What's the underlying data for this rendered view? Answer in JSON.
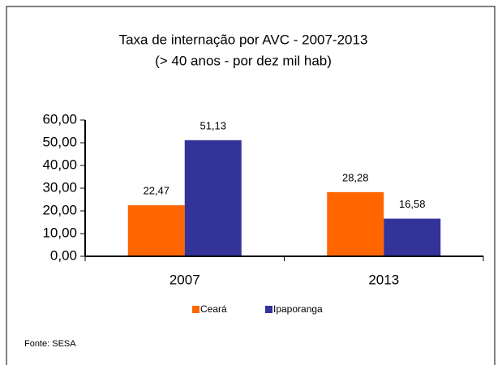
{
  "chart_data": {
    "type": "bar",
    "title": "Taxa de internação por AVC - 2007-2013",
    "subtitle": "(> 40 anos - por dez mil hab)",
    "categories": [
      "2007",
      "2013"
    ],
    "series": [
      {
        "name": "Ceará",
        "color": "#ff6600",
        "values": [
          22.47,
          28.28
        ],
        "value_labels": [
          "22,47",
          "28,28"
        ]
      },
      {
        "name": "Ipaporanga",
        "color": "#333399",
        "values": [
          51.13,
          16.58
        ],
        "value_labels": [
          "51,13",
          "16,58"
        ]
      }
    ],
    "ylim": [
      0,
      60
    ],
    "yticks": [
      {
        "value": 0,
        "label": "0,00"
      },
      {
        "value": 10,
        "label": "10,00"
      },
      {
        "value": 20,
        "label": "20,00"
      },
      {
        "value": 30,
        "label": "30,00"
      },
      {
        "value": 40,
        "label": "40,00"
      },
      {
        "value": 50,
        "label": "50,00"
      },
      {
        "value": 60,
        "label": "60,00"
      }
    ],
    "legend": "bottom",
    "source": "Fonte: SESA"
  }
}
